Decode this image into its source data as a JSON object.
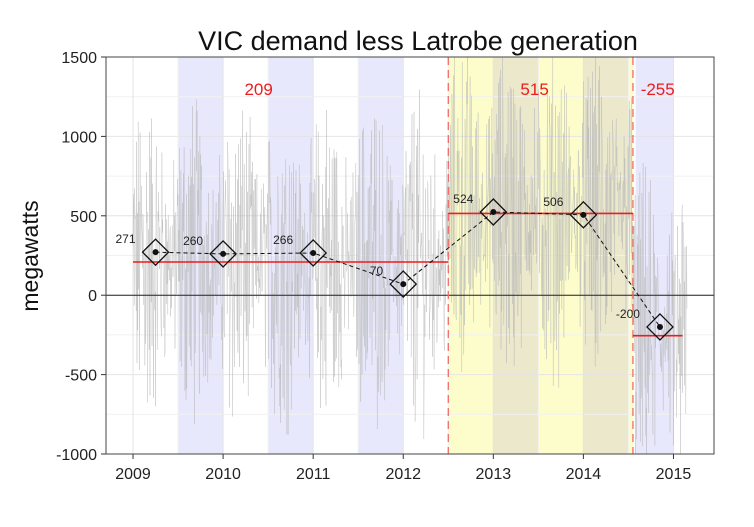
{
  "chart_data": {
    "type": "line",
    "title": "VIC demand less Latrobe generation",
    "xlabel": "",
    "ylabel": "megawatts",
    "xlim": [
      2008.7,
      2015.45
    ],
    "ylim": [
      -1000,
      1500
    ],
    "x_ticks": [
      "2009",
      "2010",
      "2011",
      "2012",
      "2013",
      "2014",
      "2015"
    ],
    "y_ticks": [
      "1500",
      "1000",
      "500",
      "0",
      "-500",
      "-1000"
    ],
    "grid": true,
    "summer_bands": [
      [
        2009.5,
        2010.0
      ],
      [
        2010.5,
        2011.0
      ],
      [
        2011.5,
        2012.0
      ],
      [
        2013.0,
        2013.5
      ],
      [
        2014.0,
        2014.5
      ],
      [
        2014.58,
        2015.0
      ]
    ],
    "highlight_period": [
      2012.5,
      2014.55
    ],
    "segments": [
      {
        "label": "209",
        "x_start": 2009.0,
        "x_end": 2012.5,
        "value": 209
      },
      {
        "label": "515",
        "x_start": 2012.5,
        "x_end": 2014.55,
        "value": 515
      },
      {
        "label": "-255",
        "x_start": 2014.55,
        "x_end": 2015.1,
        "value": -255
      }
    ],
    "period_boundaries": [
      2012.5,
      2014.55
    ],
    "annual_points": [
      {
        "x": 2009.25,
        "y": 271,
        "label": "271"
      },
      {
        "x": 2010.0,
        "y": 260,
        "label": "260"
      },
      {
        "x": 2011.0,
        "y": 266,
        "label": "266"
      },
      {
        "x": 2012.0,
        "y": 70,
        "label": "70"
      },
      {
        "x": 2013.0,
        "y": 524,
        "label": "524"
      },
      {
        "x": 2014.0,
        "y": 506,
        "label": "506"
      },
      {
        "x": 2014.85,
        "y": -200,
        "label": "-200"
      }
    ],
    "colors": {
      "segment_line": "#ee1c1c",
      "boundary_line": "#f06a6a",
      "summer_band": "#e8e8fc",
      "highlight": "#fdfdcc",
      "overlap": "#ebe8cc",
      "noise": "#b8b8b8",
      "trend": "#111111"
    }
  }
}
